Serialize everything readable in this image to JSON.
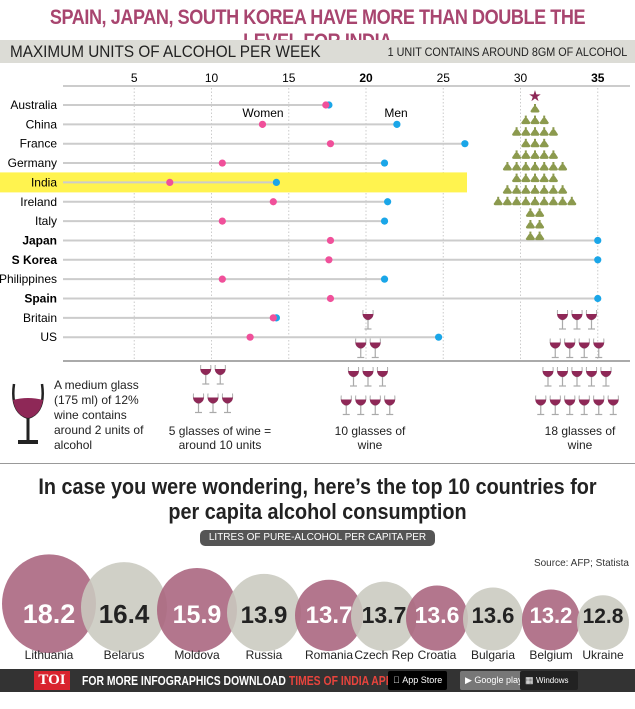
{
  "title": "SPAIN, JAPAN, SOUTH KOREA HAVE MORE THAN DOUBLE THE LEVEL FOR INDIA",
  "header": {
    "left": "MAXIMUM UNITS OF ALCOHOL PER WEEK",
    "right": "1 UNIT CONTAINS AROUND 8GM OF ALCOHOL"
  },
  "colors": {
    "women": "#f0509a",
    "men": "#1aa6e8",
    "highlight": "#fff34f",
    "wine": "#8e2857",
    "tree": "#8c9a4e",
    "bubble_a": "#a8637d",
    "bubble_b": "#c9c9bf"
  },
  "chart_data": [
    {
      "type": "dot-range",
      "xlim": [
        0,
        36
      ],
      "xticks": [
        5,
        10,
        15,
        20,
        25,
        30,
        35
      ],
      "bold_ticks": [
        20,
        35
      ],
      "legend": {
        "women": "Women",
        "men": "Men"
      },
      "highlight": "India",
      "categories": [
        "Australia",
        "China",
        "France",
        "Germany",
        "India",
        "Ireland",
        "Italy",
        "Japan",
        "S Korea",
        "Philippines",
        "Spain",
        "Britain",
        "US"
      ],
      "bold_categories": [
        "Japan",
        "S Korea",
        "Spain"
      ],
      "series": [
        {
          "name": "Women",
          "values": [
            17.4,
            13.3,
            17.7,
            10.7,
            7.3,
            14,
            10.7,
            17.7,
            17.6,
            10.7,
            17.7,
            14,
            12.5
          ]
        },
        {
          "name": "Men",
          "values": [
            17.6,
            22,
            26.4,
            21.2,
            14.2,
            21.4,
            21.2,
            35,
            35,
            21.2,
            35,
            14.2,
            24.7
          ]
        }
      ]
    },
    {
      "type": "bubble",
      "label": "LITRES OF PURE-ALCOHOL PER CAPITA PER YEAR",
      "categories": [
        "Lithuania",
        "Belarus",
        "Moldova",
        "Russia",
        "Romania",
        "Czech Rep",
        "Croatia",
        "Bulgaria",
        "Belgium",
        "Ukraine"
      ],
      "values": [
        18.2,
        16.4,
        15.9,
        13.9,
        13.7,
        13.7,
        13.6,
        13.6,
        13.2,
        12.8
      ],
      "value_labels": [
        "18.2",
        "16.4",
        "15.9",
        "13.9",
        "13.7",
        "13.7",
        "13.6",
        "13.6",
        "13.2",
        "12.8"
      ]
    }
  ],
  "notes": {
    "glass": "A medium glass (175 ml) of 12% wine contains around 2 units of alcohol",
    "g5": "5 glasses of wine = around 10 units",
    "g10": "10 glasses of wine",
    "g18": "18 glasses of wine"
  },
  "subtitle": "In case you were wondering, here’s the top 10 countries for per capita alcohol consumption",
  "source": "Source: AFP; Statista",
  "footer": {
    "logo": "TOI",
    "text": "FOR MORE  INFOGRAPHICS DOWNLOAD ",
    "app": "TIMES OF INDIA  APP",
    "appstore": "App Store",
    "googleplay": "Google play",
    "windows": "Windows Phone"
  }
}
